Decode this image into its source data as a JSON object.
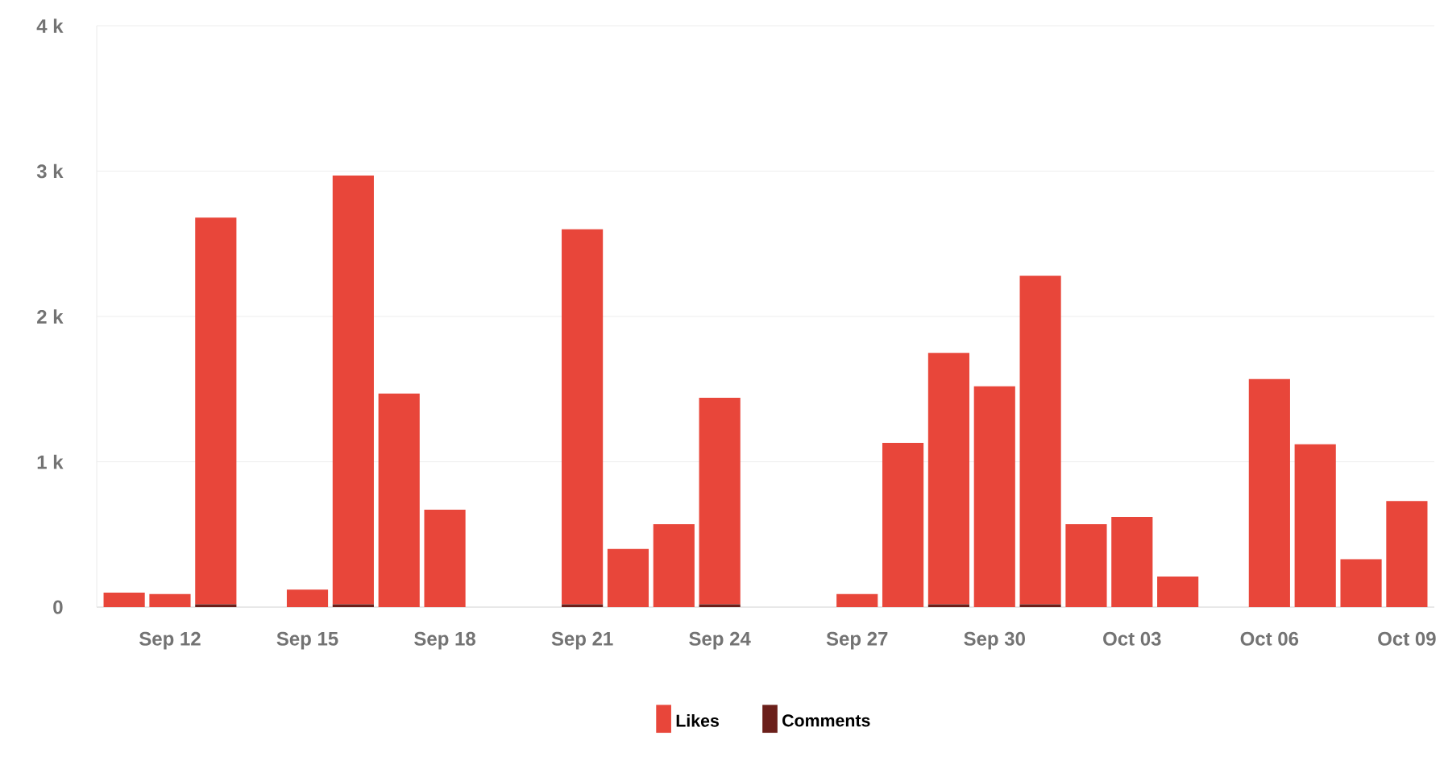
{
  "chart_data": {
    "type": "bar",
    "stacked": true,
    "categories": [
      null,
      "Sep 12",
      null,
      null,
      "Sep 15",
      null,
      null,
      "Sep 18",
      null,
      null,
      "Sep 21",
      null,
      null,
      "Sep 24",
      null,
      null,
      "Sep 27",
      null,
      null,
      "Sep 30",
      null,
      null,
      "Oct 03",
      null,
      null,
      "Oct 06",
      null,
      null,
      "Oct 09"
    ],
    "series": [
      {
        "name": "Comments",
        "color": "#6b1f1a",
        "values": [
          0,
          0,
          20,
          null,
          0,
          20,
          0,
          0,
          null,
          null,
          20,
          0,
          0,
          20,
          null,
          null,
          0,
          0,
          20,
          0,
          20,
          0,
          0,
          0,
          null,
          0,
          0,
          0,
          0
        ]
      },
      {
        "name": "Likes",
        "color": "#e8463a",
        "values": [
          100,
          90,
          2660,
          null,
          120,
          2950,
          1470,
          670,
          null,
          null,
          2580,
          400,
          570,
          1420,
          null,
          null,
          90,
          1130,
          1730,
          1520,
          2260,
          570,
          620,
          210,
          null,
          1570,
          1120,
          330,
          730
        ]
      }
    ],
    "ylim": [
      0,
      4000
    ],
    "yticks": [
      {
        "value": 0,
        "label": "0"
      },
      {
        "value": 1000,
        "label": "1 k"
      },
      {
        "value": 2000,
        "label": "2 k"
      },
      {
        "value": 3000,
        "label": "3 k"
      },
      {
        "value": 4000,
        "label": "4 k"
      }
    ],
    "grid": "y",
    "legend": "bottom"
  }
}
